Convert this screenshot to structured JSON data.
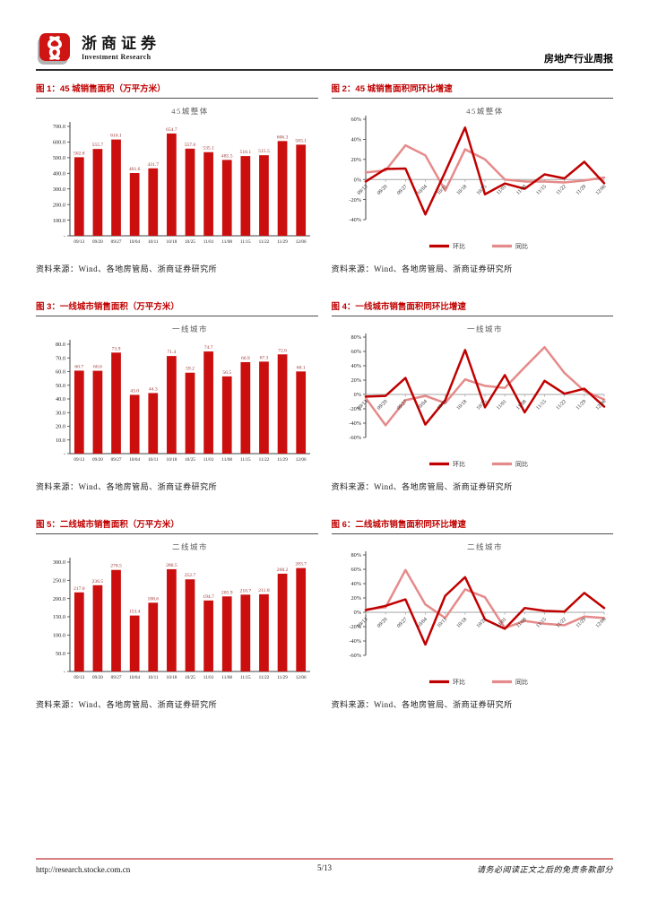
{
  "header": {
    "logo_cn": "浙商证券",
    "logo_en": "Investment Research",
    "report_type": "房地产行业周报"
  },
  "figures": [
    {
      "caption": "图 1：45 城销售面积（万平方米）",
      "source": "资料来源：Wind、各地房管局、浙商证券研究所"
    },
    {
      "caption": "图 2：45 城销售面积同环比增速",
      "source": "资料来源：Wind、各地房管局、浙商证券研究所"
    },
    {
      "caption": "图 3：一线城市销售面积（万平方米）",
      "source": "资料来源：Wind、各地房管局、浙商证券研究所"
    },
    {
      "caption": "图 4：一线城市销售面积同环比增速",
      "source": "资料来源：Wind、各地房管局、浙商证券研究所"
    },
    {
      "caption": "图 5：二线城市销售面积（万平方米）",
      "source": "资料来源：Wind、各地房管局、浙商证券研究所"
    },
    {
      "caption": "图 6：二线城市销售面积同环比增速",
      "source": "资料来源：Wind、各地房管局、浙商证券研究所"
    }
  ],
  "chart_data": [
    {
      "type": "bar",
      "title": "45城整体",
      "categories": [
        "09/13",
        "09/20",
        "09/27",
        "10/04",
        "10/11",
        "10/18",
        "10/25",
        "11/01",
        "11/08",
        "11/15",
        "11/22",
        "11/29",
        "12/06"
      ],
      "values": [
        502.8,
        555.7,
        616.1,
        401.6,
        431.7,
        654.7,
        557.6,
        535.1,
        485.5,
        510.1,
        515.5,
        606.3,
        583.1
      ],
      "xlabel": "",
      "ylabel": "",
      "ylim": [
        0,
        700
      ],
      "ytick_step": 100,
      "grid": false
    },
    {
      "type": "line",
      "title": "45城整体",
      "categories": [
        "09/13",
        "09/20",
        "09/27",
        "10/04",
        "10/11",
        "10/18",
        "10/25",
        "11/01",
        "11/08",
        "11/15",
        "11/22",
        "11/29",
        "12/06"
      ],
      "series": [
        {
          "name": "环比",
          "values": [
            -2.0,
            10.5,
            10.9,
            -34.8,
            7.5,
            51.7,
            -14.8,
            -4.0,
            -9.3,
            5.1,
            1.1,
            17.6,
            -3.8
          ]
        },
        {
          "name": "同比",
          "values": [
            7,
            9,
            34,
            24,
            -11,
            30,
            20,
            0,
            -2,
            -2,
            -3,
            -1,
            2
          ]
        }
      ],
      "xlabel": "",
      "ylabel": "",
      "ylim": [
        -40,
        60
      ],
      "ytick_step": 20,
      "grid": false,
      "legend_position": "bottom"
    },
    {
      "type": "bar",
      "title": "一线城市",
      "categories": [
        "09/13",
        "09/20",
        "09/27",
        "10/04",
        "10/11",
        "10/18",
        "10/25",
        "11/01",
        "11/08",
        "11/15",
        "11/22",
        "11/29",
        "12/06"
      ],
      "values": [
        60.7,
        60.6,
        73.9,
        43.0,
        44.3,
        71.4,
        59.2,
        74.7,
        56.5,
        66.9,
        67.3,
        72.6,
        60.1
      ],
      "xlabel": "",
      "ylabel": "",
      "ylim": [
        0,
        80
      ],
      "ytick_step": 10,
      "grid": false
    },
    {
      "type": "line",
      "title": "一线城市",
      "categories": [
        "09/13",
        "09/20",
        "09/27",
        "10/04",
        "10/11",
        "10/18",
        "10/25",
        "11/01",
        "11/08",
        "11/15",
        "11/22",
        "11/29",
        "12/06"
      ],
      "series": [
        {
          "name": "环比",
          "values": [
            -3,
            -2,
            23,
            -42,
            -8,
            62,
            -18,
            27,
            -25,
            19,
            1,
            8,
            -17
          ]
        },
        {
          "name": "同比",
          "values": [
            -5,
            -43,
            -8,
            -2,
            -12,
            21,
            12,
            9,
            38,
            66,
            30,
            5,
            -7
          ]
        }
      ],
      "xlabel": "",
      "ylabel": "",
      "ylim": [
        -60,
        80
      ],
      "ytick_step": 20,
      "grid": false,
      "legend_position": "bottom"
    },
    {
      "type": "bar",
      "title": "二线城市",
      "categories": [
        "09/13",
        "09/20",
        "09/27",
        "10/04",
        "10/11",
        "10/18",
        "10/25",
        "11/01",
        "11/08",
        "11/15",
        "11/22",
        "11/29",
        "12/06"
      ],
      "values": [
        217.0,
        236.5,
        278.5,
        153.4,
        188.6,
        280.5,
        252.7,
        194.7,
        205.9,
        210.7,
        211.8,
        268.2,
        283.7
      ],
      "xlabel": "",
      "ylabel": "",
      "ylim": [
        0,
        300
      ],
      "ytick_step": 50,
      "grid": false
    },
    {
      "type": "line",
      "title": "二线城市",
      "categories": [
        "09/13",
        "09/20",
        "09/27",
        "10/04",
        "10/11",
        "10/18",
        "10/25",
        "11/01",
        "11/08",
        "11/15",
        "11/22",
        "11/29",
        "12/06"
      ],
      "series": [
        {
          "name": "环比",
          "values": [
            3,
            9,
            18,
            -45,
            23,
            49,
            -10,
            -23,
            6,
            2,
            1,
            27,
            6
          ]
        },
        {
          "name": "同比",
          "values": [
            4,
            7,
            59,
            11,
            -8,
            32,
            21,
            -22,
            -12,
            -16,
            -18,
            -6,
            -8
          ]
        }
      ],
      "xlabel": "",
      "ylabel": "",
      "ylim": [
        -60,
        80
      ],
      "ytick_step": 20,
      "grid": false,
      "legend_position": "bottom"
    }
  ],
  "footer": {
    "url": "http://research.stocke.com.cn",
    "page": "5/13",
    "disclaimer": "请务必阅读正文之后的免责条款部分"
  },
  "colors": {
    "bar": "#cb0f0f",
    "line_dark": "#c00000",
    "line_light": "#e58a8a",
    "accent": "#c00000",
    "value_label": "#9c3434",
    "axis": "#404040",
    "zero_line": "#a6a6a6",
    "chart_title": "#595959",
    "tick_text": "#262626",
    "footer_line": "#d87f7f"
  }
}
